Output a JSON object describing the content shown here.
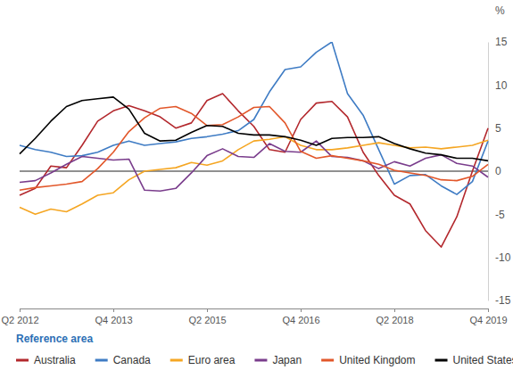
{
  "chart_data": {
    "type": "line",
    "ylabel": "%",
    "legend_title": "Reference area",
    "legend": "bottom",
    "grid": false,
    "categories": [
      "Q2 2012",
      null,
      null,
      null,
      null,
      null,
      "Q4 2013",
      null,
      null,
      null,
      null,
      null,
      "Q2 2015",
      null,
      null,
      null,
      null,
      null,
      "Q4 2016",
      null,
      null,
      null,
      null,
      null,
      "Q2 2018",
      null,
      null,
      null,
      null,
      null,
      "Q4 2019"
    ],
    "ylim": [
      -15,
      15
    ],
    "yticks": [
      -15,
      -10,
      -5,
      0,
      5,
      10,
      15
    ],
    "series": [
      {
        "name": "Australia",
        "color": "#b3282d",
        "values": [
          -2.8,
          -2.0,
          0.6,
          0.4,
          3.0,
          5.8,
          7.0,
          7.6,
          7.0,
          6.3,
          5.0,
          5.6,
          8.2,
          9.0,
          7.0,
          5.2,
          2.5,
          2.2,
          6.0,
          7.9,
          8.1,
          6.3,
          2.2,
          -0.5,
          -2.8,
          -3.8,
          -6.9,
          -8.8,
          -5.3,
          0.0,
          5.0
        ]
      },
      {
        "name": "Canada",
        "color": "#3f7cc4",
        "values": [
          3.0,
          2.5,
          2.2,
          1.7,
          1.8,
          2.2,
          3.0,
          3.5,
          3.0,
          3.2,
          3.4,
          3.8,
          4.0,
          4.3,
          4.7,
          6.0,
          9.2,
          11.8,
          12.1,
          13.8,
          15.0,
          9.0,
          6.5,
          2.5,
          -1.5,
          -0.5,
          -0.4,
          -1.7,
          -2.7,
          -1.2,
          3.5
        ]
      },
      {
        "name": "Euro area",
        "color": "#f5a623",
        "values": [
          -4.2,
          -5.0,
          -4.4,
          -4.7,
          -3.8,
          -2.8,
          -2.5,
          -1.0,
          0.0,
          0.2,
          0.4,
          1.0,
          0.7,
          1.2,
          2.5,
          3.5,
          3.7,
          4.0,
          3.0,
          2.5,
          2.5,
          2.7,
          3.0,
          3.3,
          3.0,
          2.7,
          2.8,
          2.6,
          2.8,
          3.0,
          3.6
        ]
      },
      {
        "name": "Japan",
        "color": "#7a3d8c",
        "values": [
          -1.3,
          -1.1,
          -0.2,
          0.8,
          1.7,
          1.5,
          1.3,
          1.4,
          -2.2,
          -2.3,
          -2.0,
          -0.2,
          1.8,
          2.6,
          1.7,
          1.6,
          3.2,
          2.3,
          2.2,
          3.5,
          1.7,
          1.6,
          1.2,
          0.3,
          1.1,
          0.6,
          1.5,
          1.9,
          0.9,
          0.6,
          -0.7
        ]
      },
      {
        "name": "United Kingdom",
        "color": "#e2572a",
        "values": [
          -2.2,
          -1.9,
          -1.7,
          -1.5,
          -1.2,
          0.3,
          2.2,
          4.6,
          6.2,
          7.3,
          7.5,
          6.7,
          5.3,
          5.4,
          6.3,
          7.4,
          7.5,
          5.6,
          2.3,
          1.5,
          1.8,
          1.5,
          1.2,
          0.8,
          0.1,
          -0.2,
          -0.5,
          -1.0,
          -1.1,
          -0.6,
          0.8
        ]
      },
      {
        "name": "United States",
        "color": "#000000",
        "values": [
          2.0,
          3.8,
          5.8,
          7.5,
          8.2,
          8.4,
          8.6,
          7.2,
          4.4,
          3.5,
          3.6,
          4.5,
          5.3,
          5.2,
          4.4,
          4.2,
          4.2,
          4.0,
          3.6,
          3.0,
          3.8,
          3.9,
          3.9,
          4.0,
          3.2,
          2.6,
          2.1,
          1.9,
          1.5,
          1.5,
          1.2
        ]
      }
    ]
  }
}
